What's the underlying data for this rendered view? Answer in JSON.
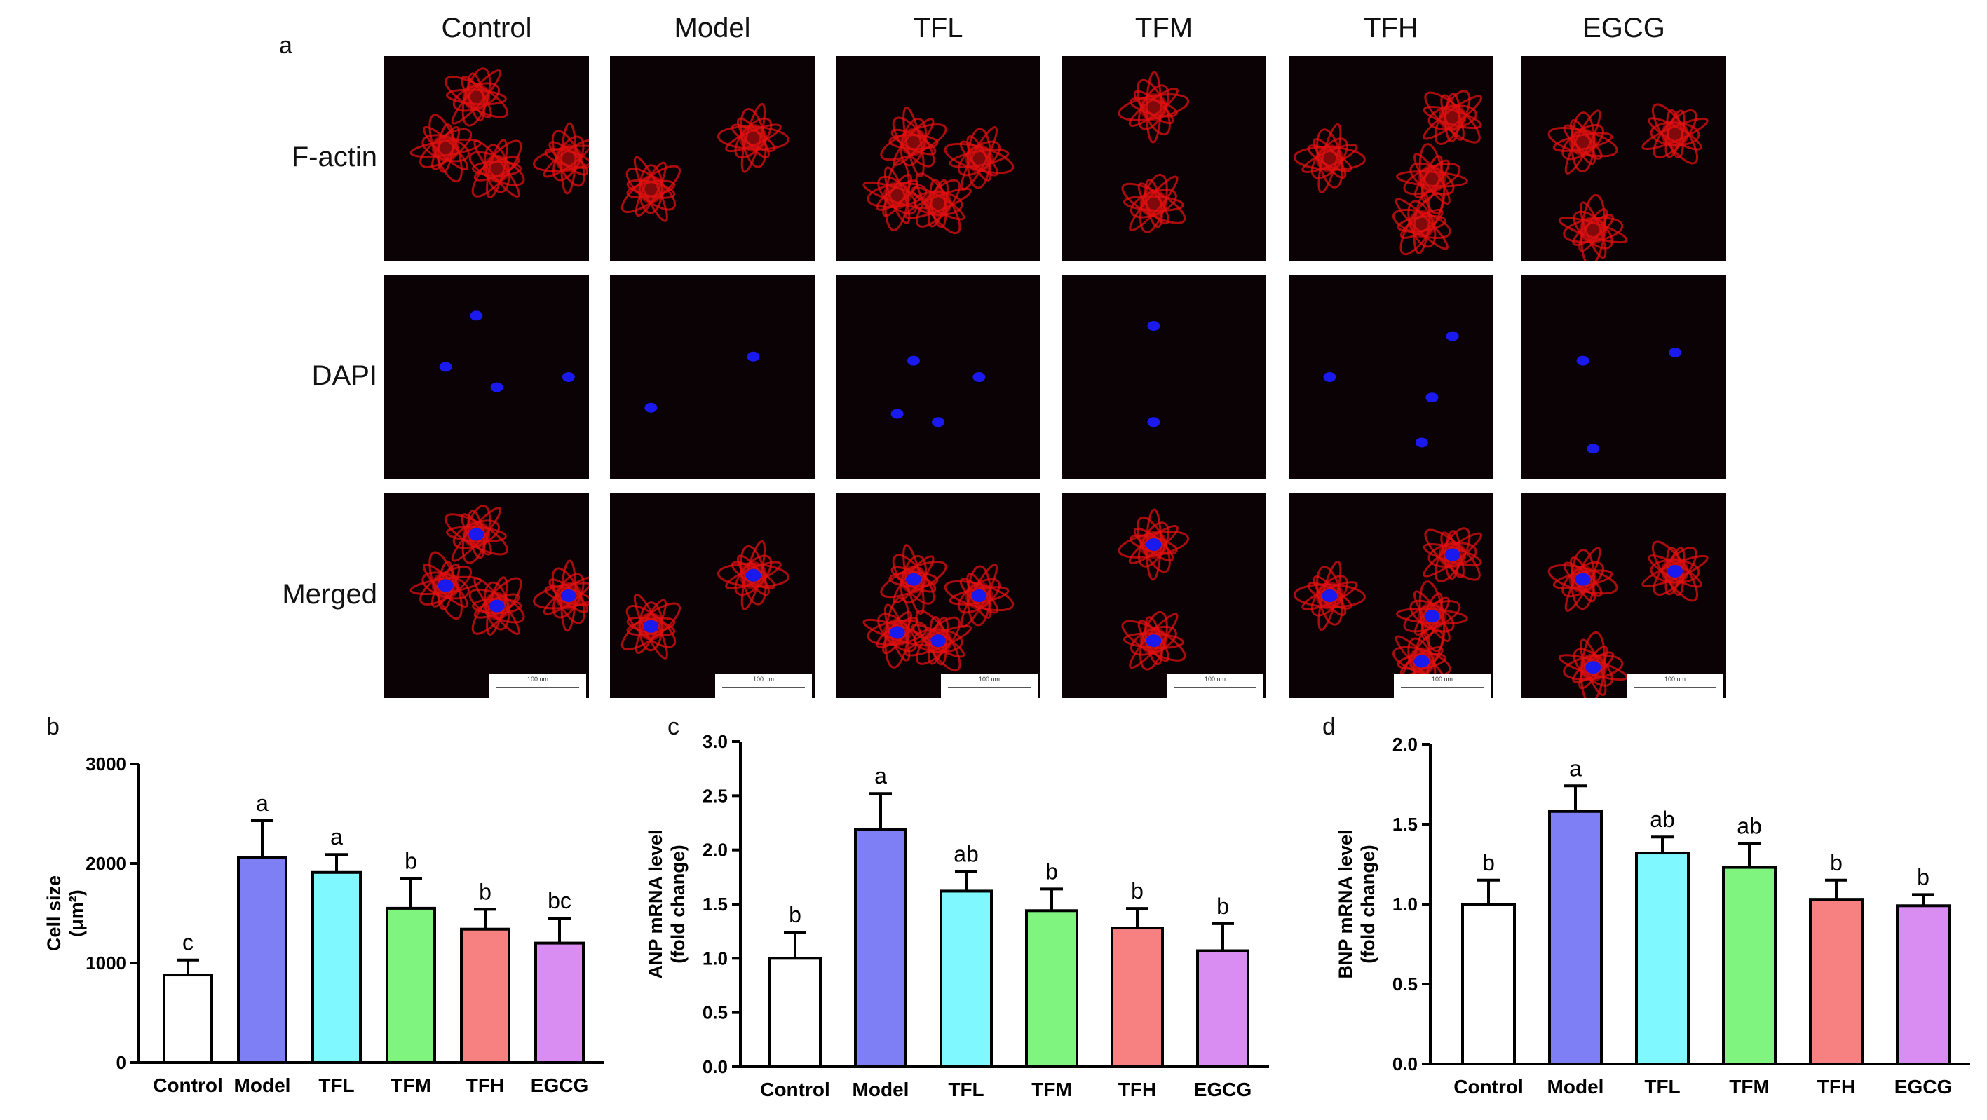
{
  "panel_a": {
    "letter": "a",
    "columns": [
      "Control",
      "Model",
      "TFL",
      "TFM",
      "TFH",
      "EGCG"
    ],
    "rows": [
      "F-actin",
      "DAPI",
      "Merged"
    ],
    "scale_bar_label": "100 um",
    "colors": {
      "actin": "#e01010",
      "nucleus": "#1a1aee",
      "background": "#0a0205"
    }
  },
  "chart_data": [
    {
      "type": "bar",
      "letter": "b",
      "categories": [
        "Control",
        "Model",
        "TFL",
        "TFM",
        "TFH",
        "EGCG"
      ],
      "values": [
        880,
        2060,
        1910,
        1550,
        1340,
        1200
      ],
      "errors": [
        150,
        370,
        180,
        300,
        200,
        250
      ],
      "significance": [
        "c",
        "a",
        "a",
        "b",
        "b",
        "bc"
      ],
      "ylabel": "Cell size",
      "ylabel_unit": "(μm²)",
      "ylim": [
        0,
        3000
      ],
      "yticks": [
        0,
        1000,
        2000,
        3000
      ],
      "ytick_labels": [
        "0",
        "1000",
        "2000",
        "3000"
      ],
      "colors": [
        "#ffffff",
        "#7f7ff5",
        "#7ff8ff",
        "#7ff57f",
        "#f78080",
        "#d98cf2"
      ]
    },
    {
      "type": "bar",
      "letter": "c",
      "categories": [
        "Control",
        "Model",
        "TFL",
        "TFM",
        "TFH",
        "EGCG"
      ],
      "values": [
        1.0,
        2.19,
        1.62,
        1.44,
        1.28,
        1.07
      ],
      "errors": [
        0.24,
        0.33,
        0.18,
        0.2,
        0.18,
        0.25
      ],
      "significance": [
        "b",
        "a",
        "ab",
        "b",
        "b",
        "b"
      ],
      "ylabel": "ANP mRNA level",
      "ylabel_unit": "(fold change)",
      "ylim": [
        0,
        3.0
      ],
      "yticks": [
        0,
        0.5,
        1.0,
        1.5,
        2.0,
        2.5,
        3.0
      ],
      "ytick_labels": [
        "0.0",
        "0.5",
        "1.0",
        "1.5",
        "2.0",
        "2.5",
        "3.0"
      ],
      "colors": [
        "#ffffff",
        "#7f7ff5",
        "#7ff8ff",
        "#7ff57f",
        "#f78080",
        "#d98cf2"
      ]
    },
    {
      "type": "bar",
      "letter": "d",
      "categories": [
        "Control",
        "Model",
        "TFL",
        "TFM",
        "TFH",
        "EGCG"
      ],
      "values": [
        1.0,
        1.58,
        1.32,
        1.23,
        1.03,
        0.99
      ],
      "errors": [
        0.15,
        0.16,
        0.1,
        0.15,
        0.12,
        0.07
      ],
      "significance": [
        "b",
        "a",
        "ab",
        "ab",
        "b",
        "b"
      ],
      "ylabel": "BNP mRNA level",
      "ylabel_unit": "(fold change)",
      "ylim": [
        0,
        2.0
      ],
      "yticks": [
        0,
        0.5,
        1.0,
        1.5,
        2.0
      ],
      "ytick_labels": [
        "0.0",
        "0.5",
        "1.0",
        "1.5",
        "2.0"
      ],
      "colors": [
        "#ffffff",
        "#7f7ff5",
        "#7ff8ff",
        "#7ff57f",
        "#f78080",
        "#d98cf2"
      ]
    }
  ]
}
